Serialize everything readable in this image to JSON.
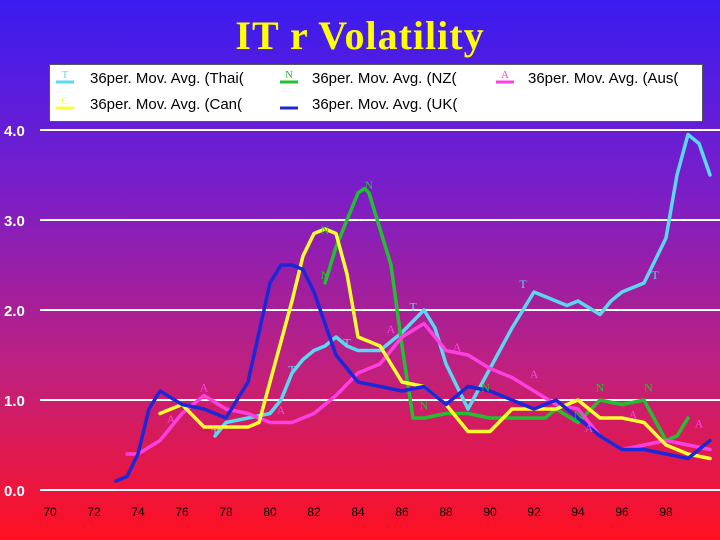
{
  "chart_data": {
    "type": "line",
    "title": "IT r Volatility",
    "xlabel": "",
    "ylabel": "",
    "xlim": [
      70,
      100
    ],
    "ylim": [
      0,
      4
    ],
    "x_ticks": [
      "70",
      "72",
      "74",
      "76",
      "78",
      "80",
      "82",
      "84",
      "86",
      "88",
      "90",
      "92",
      "94",
      "96",
      "98"
    ],
    "y_ticks": [
      "0.0",
      "1.0",
      "2.0",
      "3.0",
      "4.0"
    ],
    "legend_position": "top",
    "series": [
      {
        "name": "36per. Mov. Avg. (Thai(",
        "marker": "T",
        "color": "#5ad8f0",
        "x": [
          77.5,
          78,
          79,
          80,
          80.5,
          81,
          81.5,
          82,
          82.5,
          83,
          83.5,
          84,
          85,
          86,
          87,
          87.5,
          88,
          89,
          90,
          91,
          92,
          93,
          93.5,
          94,
          95,
          95.5,
          96,
          97,
          98,
          98.5,
          99,
          99.5,
          100
        ],
        "y": [
          0.6,
          0.75,
          0.8,
          0.85,
          1.0,
          1.3,
          1.45,
          1.55,
          1.6,
          1.7,
          1.6,
          1.55,
          1.55,
          1.75,
          2.0,
          1.8,
          1.4,
          0.9,
          1.35,
          1.8,
          2.2,
          2.1,
          2.05,
          2.1,
          1.95,
          2.1,
          2.2,
          2.3,
          2.8,
          3.5,
          3.95,
          3.85,
          3.5
        ]
      },
      {
        "name": "36per. Mov. Avg. (NZ(",
        "marker": "N",
        "color": "#22c030",
        "x": [
          82.5,
          83,
          83.5,
          84,
          84.3,
          84.5,
          85,
          85.5,
          86,
          86.5,
          87,
          88,
          89,
          90,
          91,
          92,
          92.5,
          93,
          94,
          95,
          96,
          97,
          98,
          98.5,
          99
        ],
        "y": [
          2.3,
          2.7,
          3.0,
          3.3,
          3.35,
          3.3,
          2.9,
          2.5,
          1.6,
          0.8,
          0.8,
          0.85,
          0.85,
          0.8,
          0.8,
          0.8,
          0.8,
          0.9,
          0.75,
          1.0,
          0.95,
          1.0,
          0.55,
          0.6,
          0.8
        ]
      },
      {
        "name": "36per. Mov. Avg. (Aus(",
        "marker": "A",
        "color": "#ff40e0",
        "x": [
          73.5,
          74,
          75,
          76,
          77,
          78,
          79,
          80,
          81,
          82,
          83,
          84,
          85,
          86,
          87,
          88,
          89,
          90,
          91,
          92,
          93,
          94,
          95,
          96,
          97,
          98,
          99,
          100
        ],
        "y": [
          0.4,
          0.4,
          0.55,
          0.85,
          1.05,
          0.9,
          0.85,
          0.75,
          0.75,
          0.85,
          1.05,
          1.3,
          1.4,
          1.7,
          1.85,
          1.55,
          1.5,
          1.35,
          1.25,
          1.1,
          0.95,
          0.9,
          0.6,
          0.45,
          0.5,
          0.55,
          0.5,
          0.45
        ]
      },
      {
        "name": "36per. Mov. Avg. (Can(",
        "marker": "C",
        "color": "#ffff30",
        "x": [
          75,
          76,
          77,
          78,
          79,
          79.5,
          80,
          81,
          81.5,
          82,
          82.5,
          83,
          83.5,
          84,
          85,
          86,
          87,
          88,
          89,
          90,
          91,
          92,
          93,
          94,
          95,
          96,
          97,
          98,
          99,
          100
        ],
        "y": [
          0.85,
          0.95,
          0.7,
          0.7,
          0.7,
          0.75,
          1.2,
          2.1,
          2.6,
          2.85,
          2.9,
          2.85,
          2.4,
          1.7,
          1.6,
          1.2,
          1.15,
          0.95,
          0.65,
          0.65,
          0.9,
          0.9,
          0.9,
          1.0,
          0.8,
          0.8,
          0.75,
          0.5,
          0.4,
          0.35
        ]
      },
      {
        "name": "36per. Mov. Avg. (UK(",
        "marker": "",
        "color": "#1a28d8",
        "x": [
          73,
          73.5,
          74,
          74.5,
          75,
          76,
          77,
          78,
          79,
          80,
          80.5,
          81,
          81.5,
          82,
          83,
          84,
          85,
          86,
          87,
          88,
          89,
          90,
          91,
          92,
          93,
          94,
          95,
          96,
          97,
          98,
          99,
          100
        ],
        "y": [
          0.1,
          0.15,
          0.4,
          0.9,
          1.1,
          0.95,
          0.9,
          0.8,
          1.2,
          2.3,
          2.5,
          2.5,
          2.45,
          2.2,
          1.5,
          1.2,
          1.15,
          1.1,
          1.15,
          0.95,
          1.15,
          1.1,
          1.0,
          0.9,
          1.0,
          0.8,
          0.6,
          0.45,
          0.45,
          0.4,
          0.35,
          0.55
        ]
      }
    ],
    "point_labels": [
      {
        "series": 0,
        "text": "T",
        "x": 77.5,
        "y": 0.55
      },
      {
        "series": 0,
        "text": "T",
        "x": 81,
        "y": 1.25
      },
      {
        "series": 0,
        "text": "T",
        "x": 83.5,
        "y": 1.55
      },
      {
        "series": 0,
        "text": "T",
        "x": 86.5,
        "y": 1.95
      },
      {
        "series": 0,
        "text": "T",
        "x": 91.5,
        "y": 2.2
      },
      {
        "series": 0,
        "text": "T",
        "x": 97.5,
        "y": 2.3
      },
      {
        "series": 1,
        "text": "N",
        "x": 84.5,
        "y": 3.3
      },
      {
        "series": 1,
        "text": "N",
        "x": 82.5,
        "y": 2.8
      },
      {
        "series": 1,
        "text": "N",
        "x": 82.5,
        "y": 2.3
      },
      {
        "series": 1,
        "text": "N",
        "x": 87,
        "y": 0.85
      },
      {
        "series": 1,
        "text": "N",
        "x": 89.8,
        "y": 1.05
      },
      {
        "series": 1,
        "text": "N",
        "x": 94,
        "y": 0.75
      },
      {
        "series": 1,
        "text": "N",
        "x": 95,
        "y": 1.05
      },
      {
        "series": 1,
        "text": "N",
        "x": 97.2,
        "y": 1.05
      },
      {
        "series": 2,
        "text": "A",
        "x": 75.5,
        "y": 0.7
      },
      {
        "series": 2,
        "text": "A",
        "x": 77,
        "y": 1.05
      },
      {
        "series": 2,
        "text": "A",
        "x": 80.5,
        "y": 0.8
      },
      {
        "series": 2,
        "text": "A",
        "x": 85.5,
        "y": 1.7
      },
      {
        "series": 2,
        "text": "A",
        "x": 88.5,
        "y": 1.5
      },
      {
        "series": 2,
        "text": "A",
        "x": 92,
        "y": 1.2
      },
      {
        "series": 2,
        "text": "A",
        "x": 94.5,
        "y": 0.6
      },
      {
        "series": 2,
        "text": "A",
        "x": 96.5,
        "y": 0.75
      },
      {
        "series": 2,
        "text": "A",
        "x": 99.5,
        "y": 0.65
      }
    ]
  },
  "legend": {
    "items": [
      {
        "label": "36per. Mov. Avg. (Thai(",
        "marker": "T",
        "color": "#5ad8f0"
      },
      {
        "label": "36per. Mov. Avg. (NZ(",
        "marker": "N",
        "color": "#22c030"
      },
      {
        "label": "36per. Mov. Avg. (Aus(",
        "marker": "A",
        "color": "#ff40e0"
      },
      {
        "label": "36per. Mov. Avg. (Can(",
        "marker": "C",
        "color": "#ffff30"
      },
      {
        "label": "36per. Mov. Avg. (UK(",
        "marker": "",
        "color": "#1a28d8"
      }
    ]
  }
}
